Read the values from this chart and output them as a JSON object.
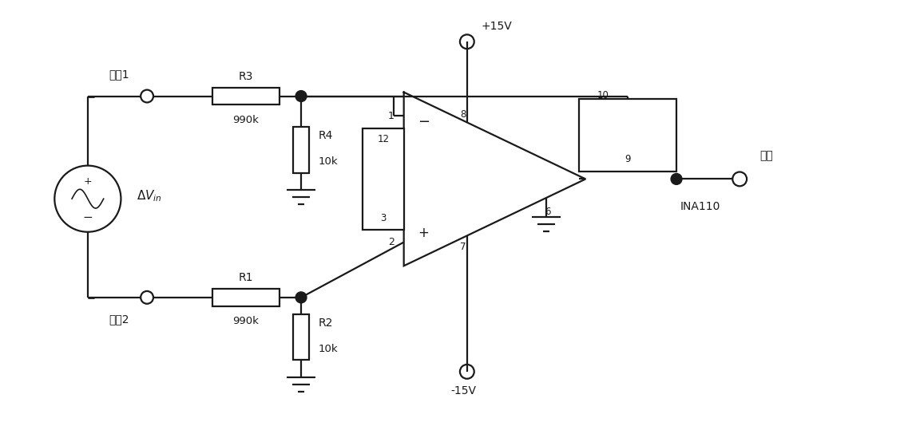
{
  "bg_color": "#ffffff",
  "line_color": "#1a1a1a",
  "fig_width": 11.37,
  "fig_height": 5.29,
  "labels": {
    "input1": "输入1",
    "input2": "输入2",
    "output": "输出",
    "R3": "R3",
    "R3_val": "990k",
    "R4": "R4",
    "R4_val": "10k",
    "R1": "R1",
    "R1_val": "990k",
    "R2": "R2",
    "R2_val": "10k",
    "Vplus": "+15V",
    "Vminus": "-15V",
    "INA110": "INA110"
  }
}
